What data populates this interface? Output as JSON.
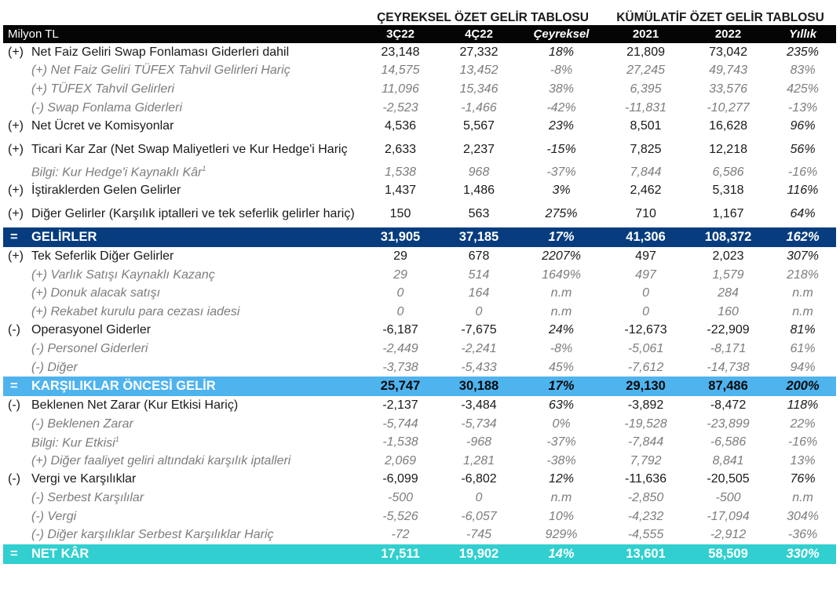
{
  "group_headers": {
    "quarterly": "ÇEYREKSEL ÖZET GELİR TABLOSU",
    "cumulative": "KÜMÜLATİF ÖZET GELİR TABLOSU"
  },
  "columns": {
    "unit": "Milyon TL",
    "q1": "3Ç22",
    "q2": "4Ç22",
    "q_change": "Çeyreksel",
    "y1": "2021",
    "y2": "2022",
    "y_change": "Yıllık"
  },
  "rows": [
    {
      "sym": "(+)",
      "label": "Net Faiz Geliri Swap Fonlaması Giderleri dahil",
      "q1": "23,148",
      "q2": "27,332",
      "qc": "18%",
      "y1": "21,809",
      "y2": "73,042",
      "yc": "235%"
    },
    {
      "sym": "",
      "label": "(+) Net Faiz Geliri TÜFEX Tahvil Gelirleri Hariç",
      "q1": "14,575",
      "q2": "13,452",
      "qc": "-8%",
      "y1": "27,245",
      "y2": "49,743",
      "yc": "83%"
    },
    {
      "sym": "",
      "label": "(+) TÜFEX Tahvil Gelirleri",
      "q1": "11,096",
      "q2": "15,346",
      "qc": "38%",
      "y1": "6,395",
      "y2": "33,576",
      "yc": "425%"
    },
    {
      "sym": "",
      "label": "(-) Swap Fonlama Giderleri",
      "q1": "-2,523",
      "q2": "-1,466",
      "qc": "-42%",
      "y1": "-11,831",
      "y2": "-10,277",
      "yc": "-13%"
    },
    {
      "sym": "(+)",
      "label": "Net Ücret ve Komisyonlar",
      "q1": "4,536",
      "q2": "5,567",
      "qc": "23%",
      "y1": "8,501",
      "y2": "16,628",
      "yc": "96%"
    },
    {
      "sym": "(+)",
      "label": "Ticari Kar Zar (Net Swap Maliyetleri ve Kur Hedge'i Hariç",
      "q1": "2,633",
      "q2": "2,237",
      "qc": "-15%",
      "y1": "7,825",
      "y2": "12,218",
      "yc": "56%"
    },
    {
      "sym": "",
      "label": "Bilgi: Kur Hedge'i Kaynaklı Kâr",
      "sup": "1",
      "q1": "1,538",
      "q2": "968",
      "qc": "-37%",
      "y1": "7,844",
      "y2": "6,586",
      "yc": "-16%"
    },
    {
      "sym": "(+)",
      "label": "İştiraklerden Gelen Gelirler",
      "q1": "1,437",
      "q2": "1,486",
      "qc": "3%",
      "y1": "2,462",
      "y2": "5,318",
      "yc": "116%"
    },
    {
      "sym": "(+)",
      "label": "Diğer Gelirler (Karşılık iptalleri ve tek seferlik gelirler hariç)",
      "q1": "150",
      "q2": "563",
      "qc": "275%",
      "y1": "710",
      "y2": "1,167",
      "yc": "64%"
    },
    {
      "sym": "=",
      "label": "GELİRLER",
      "q1": "31,905",
      "q2": "37,185",
      "qc": "17%",
      "y1": "41,306",
      "y2": "108,372",
      "yc": "162%"
    },
    {
      "sym": "(+)",
      "label": "Tek Seferlik Diğer Gelirler",
      "q1": "29",
      "q2": "678",
      "qc": "2207%",
      "y1": "497",
      "y2": "2,023",
      "yc": "307%"
    },
    {
      "sym": "",
      "label": "(+) Varlık Satışı Kaynaklı Kazanç",
      "q1": "29",
      "q2": "514",
      "qc": "1649%",
      "y1": "497",
      "y2": "1,579",
      "yc": "218%"
    },
    {
      "sym": "",
      "label": "(+) Donuk alacak satışı",
      "q1": "0",
      "q2": "164",
      "qc": "n.m",
      "y1": "0",
      "y2": "284",
      "yc": "n.m"
    },
    {
      "sym": "",
      "label": "(+) Rekabet kurulu para cezası iadesi",
      "q1": "0",
      "q2": "0",
      "qc": "n.m",
      "y1": "0",
      "y2": "160",
      "yc": "n.m"
    },
    {
      "sym": "(-)",
      "label": "Operasyonel Giderler",
      "q1": "-6,187",
      "q2": "-7,675",
      "qc": "24%",
      "y1": "-12,673",
      "y2": "-22,909",
      "yc": "81%"
    },
    {
      "sym": "",
      "label": "(-) Personel Giderleri",
      "q1": "-2,449",
      "q2": "-2,241",
      "qc": "-8%",
      "y1": "-5,061",
      "y2": "-8,171",
      "yc": "61%"
    },
    {
      "sym": "",
      "label": "(-) Diğer",
      "q1": "-3,738",
      "q2": "-5,433",
      "qc": "45%",
      "y1": "-7,612",
      "y2": "-14,738",
      "yc": "94%"
    },
    {
      "sym": "=",
      "label": "KARŞILIKLAR ÖNCESİ GELİR",
      "q1": "25,747",
      "q2": "30,188",
      "qc": "17%",
      "y1": "29,130",
      "y2": "87,486",
      "yc": "200%"
    },
    {
      "sym": "(-)",
      "label": "Beklenen Net Zarar (Kur Etkisi Hariç)",
      "q1": "-2,137",
      "q2": "-3,484",
      "qc": "63%",
      "y1": "-3,892",
      "y2": "-8,472",
      "yc": "118%"
    },
    {
      "sym": "",
      "label": "(-) Beklenen Zarar",
      "q1": "-5,744",
      "q2": "-5,734",
      "qc": "0%",
      "y1": "-19,528",
      "y2": "-23,899",
      "yc": "22%"
    },
    {
      "sym": "",
      "label": "Bilgi: Kur Etkisi",
      "sup": "1",
      "q1": "-1,538",
      "q2": "-968",
      "qc": "-37%",
      "y1": "-7,844",
      "y2": "-6,586",
      "yc": "-16%"
    },
    {
      "sym": "",
      "label": "(+) Diğer faaliyet geliri altındaki karşılık iptalleri",
      "q1": "2,069",
      "q2": "1,281",
      "qc": "-38%",
      "y1": "7,792",
      "y2": "8,841",
      "yc": "13%"
    },
    {
      "sym": "(-)",
      "label": "Vergi ve Karşılıklar",
      "q1": "-6,099",
      "q2": "-6,802",
      "qc": "12%",
      "y1": "-11,636",
      "y2": "-20,505",
      "yc": "76%"
    },
    {
      "sym": "",
      "label": "(-) Serbest Karşılılar",
      "q1": "-500",
      "q2": "0",
      "qc": "n.m",
      "y1": "-2,850",
      "y2": "-500",
      "yc": "n.m"
    },
    {
      "sym": "",
      "label": "(-) Vergi",
      "q1": "-5,526",
      "q2": "-6,057",
      "qc": "10%",
      "y1": "-4,232",
      "y2": "-17,094",
      "yc": "304%"
    },
    {
      "sym": "",
      "label": "(-) Diğer karşılıklar Serbest Karşılıklar Hariç",
      "q1": "-72",
      "q2": "-745",
      "qc": "929%",
      "y1": "-4,555",
      "y2": "-2,912",
      "yc": "-36%"
    },
    {
      "sym": "=",
      "label": "NET KÂR",
      "q1": "17,511",
      "q2": "19,902",
      "qc": "14%",
      "y1": "13,601",
      "y2": "58,509",
      "yc": "330%"
    }
  ],
  "colors": {
    "header_bg": "#050505",
    "revenue_band": "#073d7e",
    "pre_provision_band": "#4fb3ee",
    "net_profit_band": "#31cfcf",
    "sub_text": "#7d7d7d"
  }
}
